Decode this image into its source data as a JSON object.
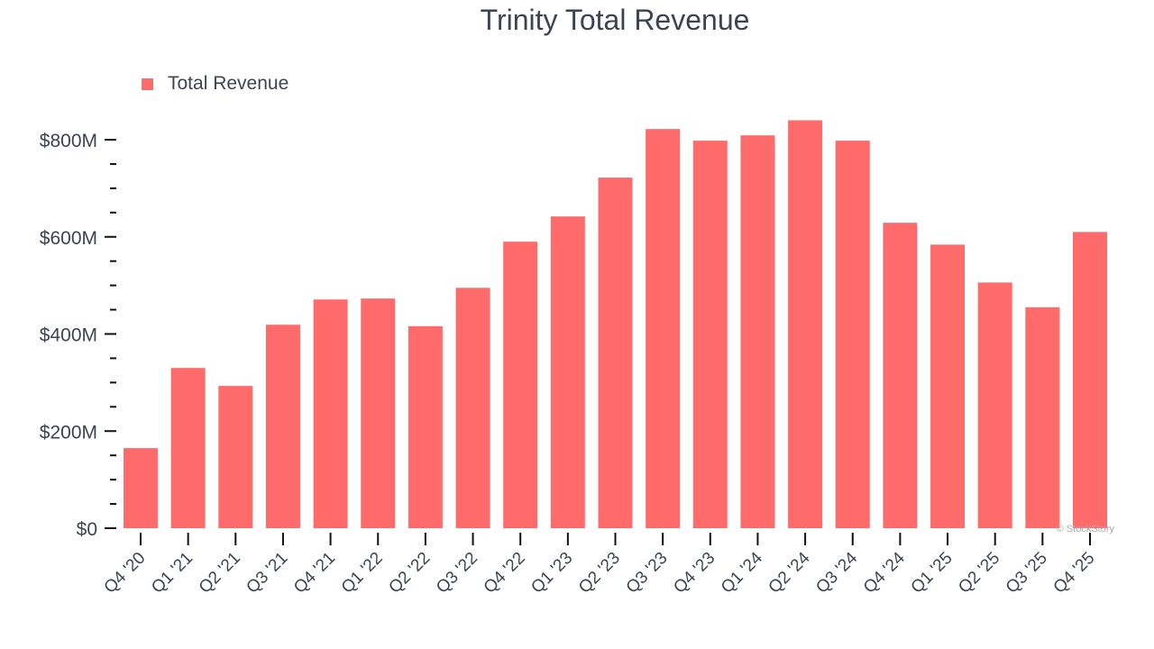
{
  "chart_data": {
    "type": "bar",
    "title": "Trinity Total Revenue",
    "xlabel": "",
    "ylabel": "",
    "legend": {
      "entries": [
        "Total Revenue"
      ],
      "placement": "top-left"
    },
    "categories": [
      "Q4 '20",
      "Q1 '21",
      "Q2 '21",
      "Q3 '21",
      "Q4 '21",
      "Q1 '22",
      "Q2 '22",
      "Q3 '22",
      "Q4 '22",
      "Q1 '23",
      "Q2 '23",
      "Q3 '23",
      "Q4 '23",
      "Q1 '24",
      "Q2 '24",
      "Q3 '24",
      "Q4 '24",
      "Q1 '25",
      "Q2 '25",
      "Q3 '25",
      "Q4 '25"
    ],
    "series": [
      {
        "name": "Total Revenue",
        "values": [
          165,
          330,
          293,
          419,
          471,
          473,
          416,
          495,
          590,
          642,
          722,
          822,
          798,
          809,
          840,
          798,
          629,
          584,
          506,
          455,
          610
        ]
      }
    ],
    "units": "$M",
    "ylim": [
      0,
      800
    ],
    "yticks": [
      0,
      200,
      400,
      600,
      800
    ],
    "ytick_labels": [
      "$0",
      "$200M",
      "$400M",
      "$600M",
      "$800M"
    ],
    "grid": false,
    "color": "#ff6b6b",
    "watermark": "© StockStory"
  }
}
